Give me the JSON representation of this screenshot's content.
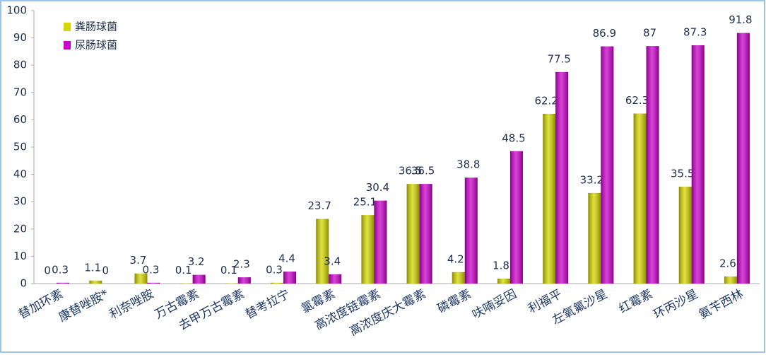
{
  "chart_data": {
    "type": "bar",
    "categories": [
      "替加环素",
      "康替唑胺*",
      "利奈唑胺",
      "万古霉素",
      "去甲万古霉素",
      "替考拉宁",
      "氯霉素",
      "高浓度链霉素",
      "高浓度庆大霉素",
      "磷霉素",
      "呋喃妥因",
      "利福平",
      "左氧氟沙星",
      "红霉素",
      "环丙沙星",
      "氨苄西林"
    ],
    "series": [
      {
        "name": "粪肠球菌",
        "color": "#d6d600",
        "values": [
          0,
          1.1,
          3.7,
          0.1,
          0.1,
          0.3,
          23.7,
          25.1,
          36.5,
          4.2,
          1.8,
          62.2,
          33.2,
          62.3,
          35.5,
          2.6
        ]
      },
      {
        "name": "尿肠球菌",
        "color": "#cc00cc",
        "values": [
          0.3,
          0,
          0.3,
          3.2,
          2.3,
          4.4,
          3.4,
          30.4,
          36.5,
          38.8,
          48.5,
          77.5,
          86.9,
          87,
          87.3,
          91.8
        ]
      }
    ],
    "ylim": [
      0,
      100
    ],
    "yticks": [
      0,
      10,
      20,
      30,
      40,
      50,
      60,
      70,
      80,
      90,
      100
    ],
    "grid": false,
    "legend": "upper left"
  }
}
